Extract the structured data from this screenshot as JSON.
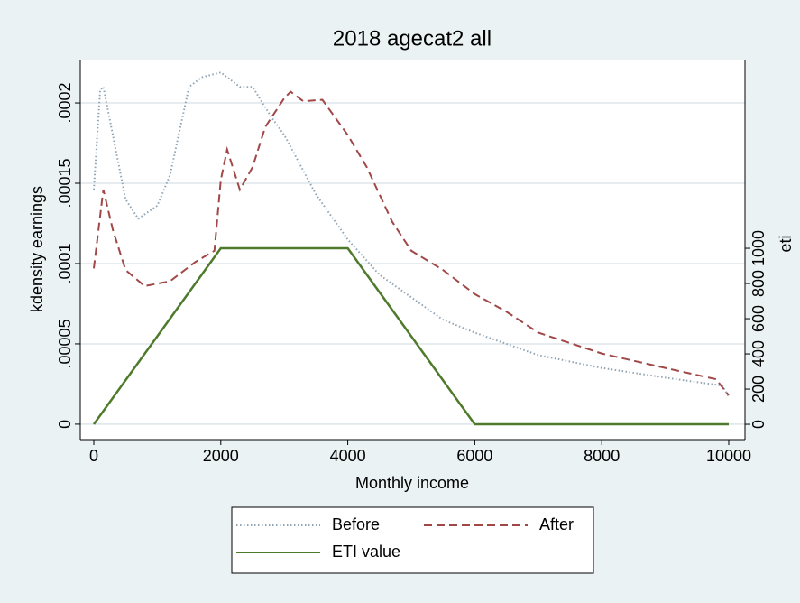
{
  "chart_data": {
    "type": "line",
    "title": "2018 agecat2 all",
    "xlabel": "Monthly income",
    "ylabel": "kdensity earnings",
    "y2label": "eti",
    "xlim": [
      -213,
      10256
    ],
    "xticks": [
      0,
      2000,
      4000,
      6000,
      8000,
      10000
    ],
    "ylim": [
      -9.6e-06,
      0.000227
    ],
    "yticks": [
      {
        "value": 0,
        "label": "0"
      },
      {
        "value": 5e-05,
        "label": ".00005"
      },
      {
        "value": 0.0001,
        "label": ".0001"
      },
      {
        "value": 0.00015,
        "label": ".00015"
      },
      {
        "value": 0.0002,
        "label": ".0002"
      }
    ],
    "y2lim": [
      -87,
      2072
    ],
    "y2ticks": [
      0,
      200,
      400,
      600,
      800,
      1000
    ],
    "grid": true,
    "legend": "bottom",
    "series": [
      {
        "name": "Before",
        "color": "#90a4b4",
        "style": "dotted",
        "x": [
          0,
          100,
          150,
          300,
          500,
          700,
          1000,
          1200,
          1500,
          1700,
          2000,
          2300,
          2500,
          2800,
          3000,
          3500,
          4000,
          4500,
          5000,
          5500,
          6000,
          7000,
          8000,
          9000,
          9900,
          10000
        ],
        "values": [
          0.000146,
          0.000208,
          0.00021,
          0.00018,
          0.00014,
          0.000128,
          0.000136,
          0.000155,
          0.00021,
          0.000216,
          0.000219,
          0.00021,
          0.00021,
          0.000191,
          0.00018,
          0.000143,
          0.000115,
          9.3e-05,
          7.9e-05,
          6.5e-05,
          5.7e-05,
          4.3e-05,
          3.5e-05,
          2.9e-05,
          2.4e-05,
          1.7e-05
        ]
      },
      {
        "name": "After",
        "color": "#a04848",
        "style": "dashed",
        "x": [
          0,
          150,
          300,
          500,
          800,
          1200,
          1600,
          1900,
          2000,
          2100,
          2300,
          2500,
          2700,
          3000,
          3100,
          3300,
          3600,
          4000,
          4300,
          4700,
          5000,
          5500,
          6000,
          6500,
          7000,
          8000,
          9000,
          9800,
          10000
        ],
        "values": [
          9.7e-05,
          0.000146,
          0.000121,
          9.6e-05,
          8.6e-05,
          8.9e-05,
          0.000101,
          0.000108,
          0.000152,
          0.000171,
          0.000146,
          0.00016,
          0.000185,
          0.000203,
          0.000207,
          0.000201,
          0.000202,
          0.00018,
          0.00016,
          0.000126,
          0.000108,
          9.6e-05,
          8.1e-05,
          7e-05,
          5.7e-05,
          4.4e-05,
          3.5e-05,
          2.8e-05,
          1.8e-05
        ]
      },
      {
        "name": "ETI value",
        "color": "#4e7a2b",
        "style": "solid",
        "axis": "y2",
        "x": [
          0,
          2000,
          4000,
          6000,
          10000
        ],
        "values": [
          0,
          1000,
          1000,
          0,
          0
        ]
      }
    ]
  }
}
